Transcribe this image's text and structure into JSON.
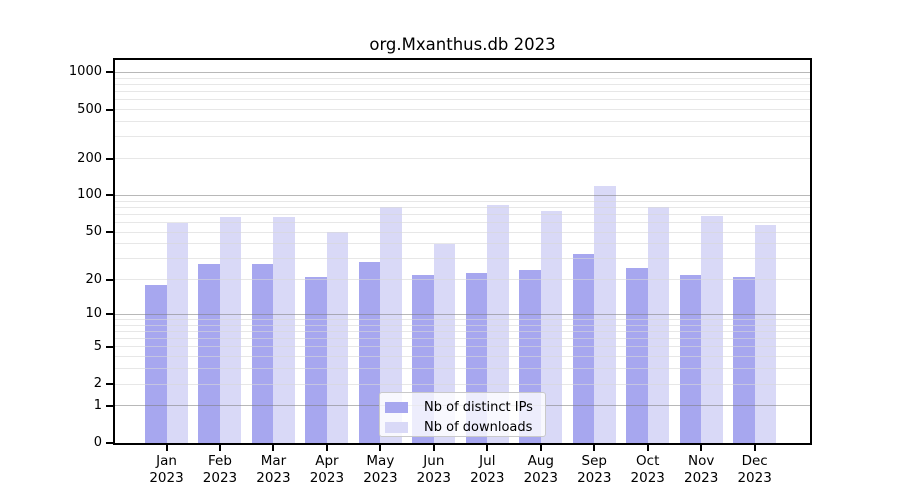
{
  "title": "org.Mxanthus.db 2023",
  "chart_data": {
    "type": "bar",
    "title": "org.Mxanthus.db 2023",
    "categories": [
      "Jan 2023",
      "Feb 2023",
      "Mar 2023",
      "Apr 2023",
      "May 2023",
      "Jun 2023",
      "Jul 2023",
      "Aug 2023",
      "Sep 2023",
      "Oct 2023",
      "Nov 2023",
      "Dec 2023"
    ],
    "series": [
      {
        "name": "Nb of distinct IPs",
        "color": "#a7a7ef",
        "values": [
          18,
          27,
          27,
          21,
          28,
          22,
          23,
          24,
          33,
          25,
          22,
          21
        ]
      },
      {
        "name": "Nb of downloads",
        "color": "#d9d9f7",
        "values": [
          60,
          67,
          67,
          50,
          81,
          40,
          84,
          75,
          119,
          81,
          68,
          57
        ]
      }
    ],
    "xlabel": "",
    "ylabel": "",
    "yticks": [
      0,
      1,
      2,
      5,
      10,
      20,
      50,
      100,
      200,
      500,
      1000
    ],
    "scale": "log10(value+1)",
    "ylim": [
      0,
      1260
    ],
    "grid": "on",
    "legend_position": "lower-center-inside"
  }
}
